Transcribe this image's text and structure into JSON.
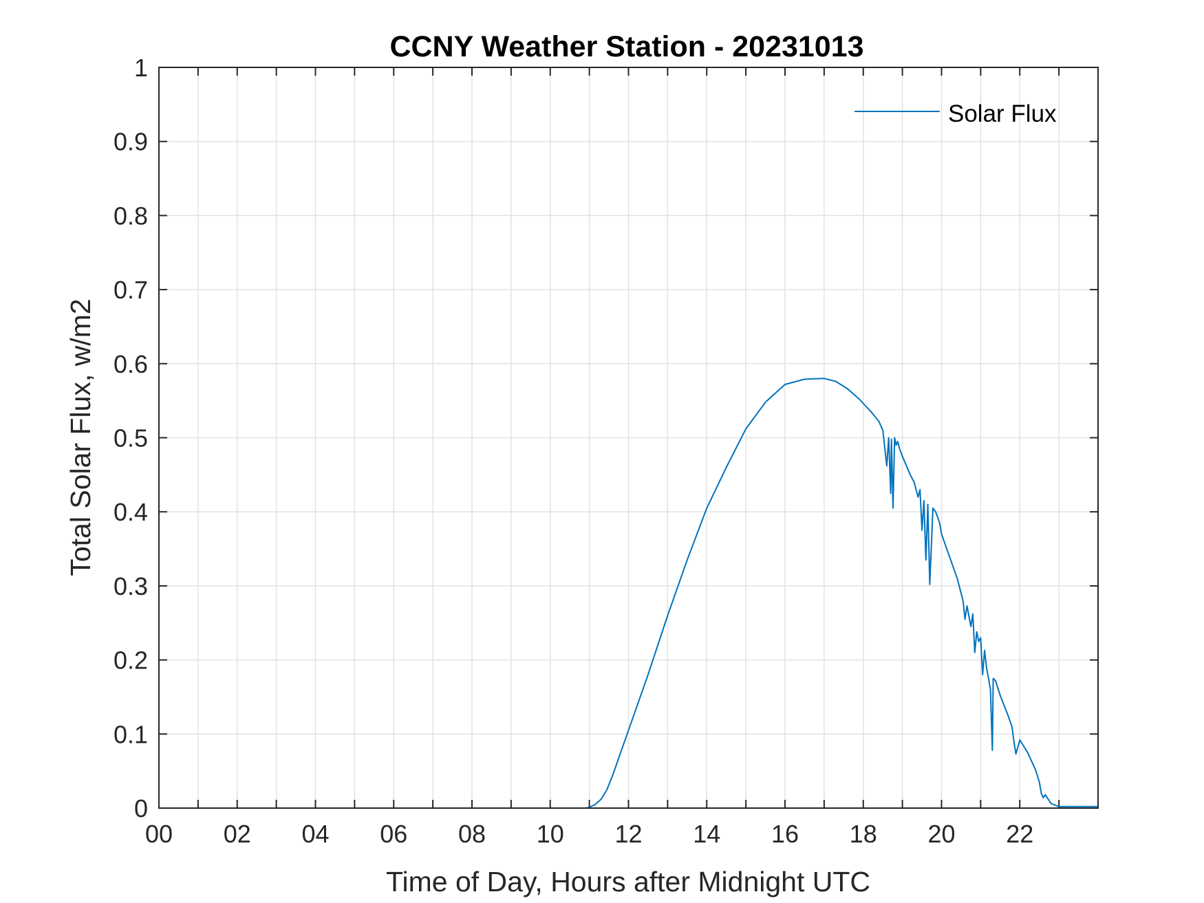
{
  "chart_data": {
    "type": "line",
    "title": "CCNY Weather Station - 20231013",
    "xlabel": "Time of Day, Hours after Midnight UTC",
    "ylabel": "Total Solar Flux, w/m2",
    "xlim": [
      0,
      24
    ],
    "ylim": [
      0,
      1
    ],
    "x_ticks": [
      0,
      2,
      4,
      6,
      8,
      10,
      12,
      14,
      16,
      18,
      20,
      22
    ],
    "x_tick_labels": [
      "00",
      "02",
      "04",
      "06",
      "08",
      "10",
      "12",
      "14",
      "16",
      "18",
      "20",
      "22"
    ],
    "x_minor_grid": [
      1,
      3,
      5,
      7,
      9,
      11,
      13,
      15,
      17,
      19,
      21,
      23
    ],
    "y_ticks": [
      0,
      0.1,
      0.2,
      0.3,
      0.4,
      0.5,
      0.6,
      0.7,
      0.8,
      0.9,
      1
    ],
    "y_tick_labels": [
      "0",
      "0.1",
      "0.2",
      "0.3",
      "0.4",
      "0.5",
      "0.6",
      "0.7",
      "0.8",
      "0.9",
      "1"
    ],
    "grid": true,
    "box": true,
    "legend": {
      "location": "top-right",
      "entries": [
        "Solar Flux"
      ]
    },
    "series": [
      {
        "name": "Solar Flux",
        "color": "#0072BD",
        "x": [
          0,
          10.0,
          10.9,
          11.0,
          11.15,
          11.3,
          11.45,
          11.6,
          11.8,
          12.0,
          12.5,
          13.0,
          13.5,
          14.0,
          14.5,
          15.0,
          15.5,
          16.0,
          16.5,
          17.0,
          17.3,
          17.6,
          17.9,
          18.2,
          18.4,
          18.5,
          18.6,
          18.65,
          18.7,
          18.72,
          18.76,
          18.8,
          18.84,
          18.88,
          18.93,
          19.0,
          19.2,
          19.3,
          19.4,
          19.45,
          19.5,
          19.55,
          19.6,
          19.65,
          19.7,
          19.78,
          19.85,
          19.9,
          19.95,
          20.0,
          20.2,
          20.4,
          20.55,
          20.6,
          20.65,
          20.75,
          20.8,
          20.85,
          20.9,
          20.95,
          21.0,
          21.05,
          21.1,
          21.15,
          21.2,
          21.25,
          21.3,
          21.32,
          21.38,
          21.5,
          21.7,
          21.8,
          21.85,
          21.9,
          22.0,
          22.2,
          22.4,
          22.5,
          22.55,
          22.6,
          22.65,
          22.8,
          23.0,
          24.0
        ],
        "y": [
          0.0,
          0.0,
          0.0,
          0.001,
          0.005,
          0.012,
          0.025,
          0.045,
          0.075,
          0.105,
          0.18,
          0.26,
          0.335,
          0.405,
          0.46,
          0.512,
          0.548,
          0.572,
          0.579,
          0.58,
          0.576,
          0.566,
          0.552,
          0.535,
          0.522,
          0.51,
          0.462,
          0.5,
          0.425,
          0.498,
          0.405,
          0.5,
          0.49,
          0.495,
          0.485,
          0.475,
          0.45,
          0.44,
          0.42,
          0.43,
          0.375,
          0.415,
          0.335,
          0.41,
          0.302,
          0.405,
          0.4,
          0.393,
          0.385,
          0.37,
          0.34,
          0.31,
          0.28,
          0.255,
          0.273,
          0.245,
          0.262,
          0.21,
          0.238,
          0.225,
          0.23,
          0.18,
          0.213,
          0.19,
          0.175,
          0.16,
          0.078,
          0.175,
          0.172,
          0.152,
          0.125,
          0.11,
          0.09,
          0.073,
          0.092,
          0.075,
          0.052,
          0.035,
          0.02,
          0.014,
          0.018,
          0.006,
          0.002,
          0.002
        ]
      }
    ]
  }
}
